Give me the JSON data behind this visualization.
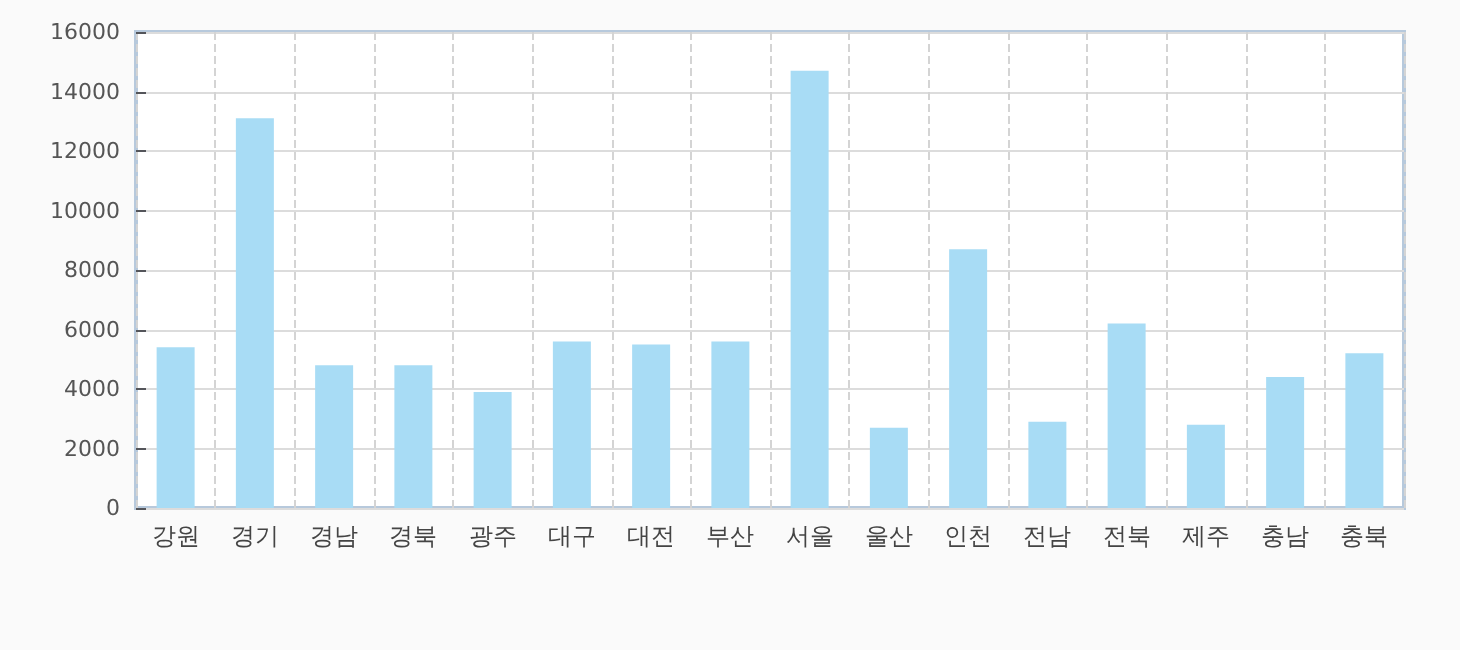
{
  "chart_data": {
    "type": "bar",
    "categories": [
      "강원",
      "경기",
      "경남",
      "경북",
      "광주",
      "대구",
      "대전",
      "부산",
      "서울",
      "울산",
      "인천",
      "전남",
      "전북",
      "제주",
      "충남",
      "충북"
    ],
    "series": [
      {
        "color": "#a8dcf5",
        "values": [
          5400,
          13100,
          4800,
          4800,
          3900,
          5600,
          5500,
          5600,
          14700,
          2700,
          8700,
          2900,
          6200,
          2800,
          4400,
          5200
        ]
      }
    ],
    "ylim": [
      0,
      16000
    ],
    "yticks": [
      0,
      2000,
      4000,
      6000,
      8000,
      10000,
      12000,
      14000,
      16000
    ],
    "grid": true
  }
}
